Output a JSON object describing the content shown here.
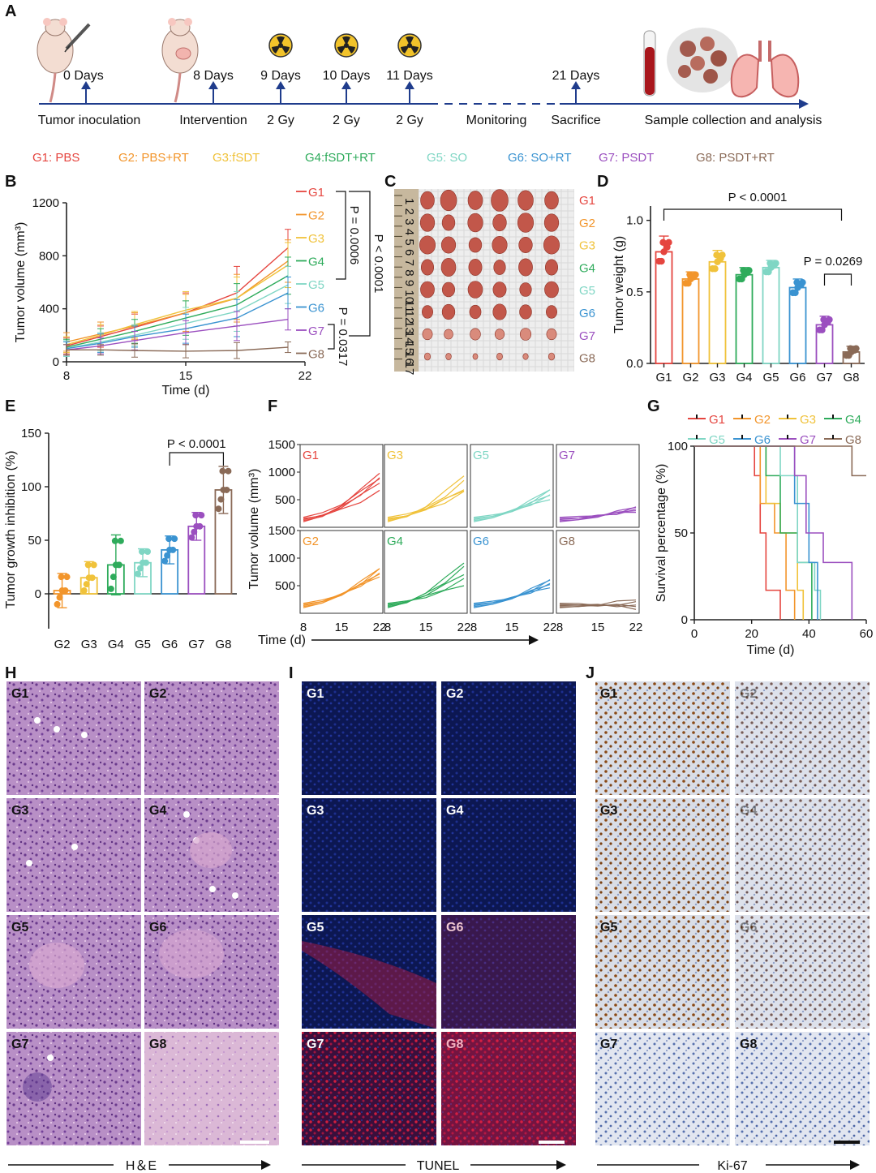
{
  "panels": {
    "A": "A",
    "B": "B",
    "C": "C",
    "D": "D",
    "E": "E",
    "F": "F",
    "G": "G",
    "H": "H",
    "I": "I",
    "J": "J"
  },
  "colors": {
    "G1": "#e5453f",
    "G2": "#f2952b",
    "G3": "#f0c23a",
    "G4": "#2eab5b",
    "G5": "#7fd6c4",
    "G6": "#3a93d1",
    "G7": "#9b4fbf",
    "G8": "#8a6a57",
    "axis": "#1f3c8c"
  },
  "timeline": {
    "events": [
      {
        "day": "0 Days",
        "below": "Tumor inoculation"
      },
      {
        "day": "8 Days",
        "below": "Intervention"
      },
      {
        "day": "9 Days",
        "below": "2 Gy"
      },
      {
        "day": "10 Days",
        "below": "2 Gy"
      },
      {
        "day": "11 Days",
        "below": "2 Gy"
      },
      {
        "day": "",
        "below": "Monitoring"
      },
      {
        "day": "21 Days",
        "below": "Sacrifice"
      },
      {
        "day": "",
        "below": "Sample collection and analysis"
      }
    ],
    "icons": [
      "mouse-injection-icon",
      "mouse-tumor-icon",
      "radiation-icon",
      "blood-tube-icon",
      "tumor-tissue-icon",
      "lungs-icon"
    ]
  },
  "groups_legend": [
    "G1: PBS",
    "G2: PBS+RT",
    "G3:fSDT",
    "G4:fSDT+RT",
    "G5: SO",
    "G6: SO+RT",
    "G7: PSDT",
    "G8: PSDT+RT"
  ],
  "panelB": {
    "chart_data": {
      "type": "line",
      "xlabel": "Time (d)",
      "ylabel": "Tumor volume (mm³)",
      "xlim": [
        8,
        22
      ],
      "ylim": [
        0,
        1200
      ],
      "xticks": [
        8,
        15,
        22
      ],
      "yticks": [
        0,
        400,
        800,
        1200
      ],
      "x": [
        8,
        10,
        12,
        15,
        18,
        21
      ],
      "series": [
        {
          "name": "G1",
          "values": [
            120,
            190,
            260,
            370,
            520,
            860
          ],
          "err": [
            60,
            80,
            100,
            150,
            200,
            140
          ]
        },
        {
          "name": "G2",
          "values": [
            150,
            210,
            270,
            370,
            480,
            760
          ],
          "err": [
            70,
            90,
            100,
            140,
            180,
            160
          ]
        },
        {
          "name": "G3",
          "values": [
            130,
            200,
            280,
            390,
            480,
            730
          ],
          "err": [
            60,
            80,
            100,
            140,
            160,
            170
          ]
        },
        {
          "name": "G4",
          "values": [
            110,
            170,
            230,
            330,
            430,
            650
          ],
          "err": [
            60,
            80,
            90,
            130,
            160,
            140
          ]
        },
        {
          "name": "G5",
          "values": [
            100,
            150,
            200,
            290,
            380,
            580
          ],
          "err": [
            60,
            70,
            80,
            120,
            150,
            140
          ]
        },
        {
          "name": "G6",
          "values": [
            100,
            140,
            190,
            250,
            330,
            520
          ],
          "err": [
            50,
            70,
            80,
            110,
            140,
            120
          ]
        },
        {
          "name": "G7",
          "values": [
            90,
            120,
            160,
            220,
            270,
            320
          ],
          "err": [
            40,
            60,
            70,
            90,
            110,
            80
          ]
        },
        {
          "name": "G8",
          "values": [
            90,
            90,
            85,
            80,
            85,
            110
          ],
          "err": [
            40,
            40,
            50,
            50,
            60,
            40
          ]
        }
      ],
      "brackets": [
        {
          "label": "P = 0.0006",
          "from": "G1",
          "to": "G5"
        },
        {
          "label": "P < 0.0001",
          "from": "G1",
          "to": "G7"
        },
        {
          "label": "P = 0.0317",
          "from": "G7",
          "to": "G8"
        }
      ]
    }
  },
  "panelC": {
    "labels": [
      "G1",
      "G2",
      "G3",
      "G4",
      "G5",
      "G6",
      "G7",
      "G8"
    ],
    "ruler": [
      "1",
      "2",
      "3",
      "4",
      "5",
      "6",
      "7",
      "8",
      "9",
      "10",
      "11",
      "12",
      "13",
      "14",
      "15",
      "16",
      "17"
    ]
  },
  "panelD": {
    "chart_data": {
      "type": "bar",
      "categories": [
        "G1",
        "G2",
        "G3",
        "G4",
        "G5",
        "G6",
        "G7",
        "G8"
      ],
      "values": [
        0.78,
        0.59,
        0.71,
        0.62,
        0.67,
        0.53,
        0.27,
        0.08
      ],
      "err": [
        0.11,
        0.05,
        0.08,
        0.05,
        0.05,
        0.06,
        0.06,
        0.04
      ],
      "ylabel": "Tumor weight (g)",
      "ylim": [
        0,
        1.1
      ],
      "yticks": [
        "0.0",
        "0.5",
        "1.0"
      ],
      "annotations": [
        "P < 0.0001",
        "P = 0.0269"
      ]
    }
  },
  "panelE": {
    "chart_data": {
      "type": "bar",
      "categories": [
        "G2",
        "G3",
        "G4",
        "G5",
        "G6",
        "G7",
        "G8"
      ],
      "values": [
        3,
        15,
        27,
        29,
        41,
        63,
        97
      ],
      "err": [
        16,
        15,
        28,
        13,
        13,
        13,
        22
      ],
      "ylabel": "Tumor growth inhibition (%)",
      "ylim": [
        -25,
        150
      ],
      "yticks": [
        "0",
        "50",
        "100",
        "150"
      ],
      "annotations": [
        "P < 0.0001"
      ]
    }
  },
  "panelF": {
    "chart_data": {
      "type": "line",
      "ylabel": "Tumor volume (mm³)",
      "xlabel": "Time (d)",
      "xticks": [
        "8",
        "15",
        "22"
      ],
      "yticks": [
        "500",
        "1000",
        "1500"
      ],
      "subplots": [
        {
          "name": "G1",
          "end": [
            1000,
            870,
            820,
            640,
            900
          ]
        },
        {
          "name": "G3",
          "end": [
            950,
            820,
            700,
            620,
            680
          ]
        },
        {
          "name": "G5",
          "end": [
            700,
            650,
            600,
            560,
            520
          ]
        },
        {
          "name": "G7",
          "end": [
            380,
            340,
            320,
            300,
            290
          ]
        },
        {
          "name": "G2",
          "end": [
            830,
            780,
            730,
            700,
            680
          ]
        },
        {
          "name": "G4",
          "end": [
            930,
            820,
            720,
            600,
            520
          ]
        },
        {
          "name": "G6",
          "end": [
            620,
            580,
            540,
            510,
            480
          ]
        },
        {
          "name": "G8",
          "end": [
            260,
            180,
            140,
            120,
            90
          ]
        }
      ]
    }
  },
  "panelG": {
    "chart_data": {
      "type": "line",
      "xlabel": "Time (d)",
      "ylabel": "Survival percentage (%)",
      "xlim": [
        0,
        60
      ],
      "ylim": [
        0,
        100
      ],
      "xticks": [
        "0",
        "20",
        "40",
        "60"
      ],
      "yticks": [
        "0",
        "50",
        "100"
      ],
      "series": [
        {
          "name": "G1",
          "steps": [
            [
              0,
              100
            ],
            [
              21,
              100
            ],
            [
              21,
              83
            ],
            [
              23,
              83
            ],
            [
              23,
              50
            ],
            [
              25,
              50
            ],
            [
              25,
              17
            ],
            [
              30,
              17
            ],
            [
              30,
              0
            ]
          ]
        },
        {
          "name": "G2",
          "steps": [
            [
              0,
              100
            ],
            [
              23,
              100
            ],
            [
              23,
              67
            ],
            [
              28,
              67
            ],
            [
              28,
              50
            ],
            [
              32,
              50
            ],
            [
              32,
              17
            ],
            [
              35,
              17
            ],
            [
              35,
              0
            ]
          ]
        },
        {
          "name": "G3",
          "steps": [
            [
              0,
              100
            ],
            [
              25,
              100
            ],
            [
              25,
              67
            ],
            [
              30,
              67
            ],
            [
              30,
              50
            ],
            [
              36,
              50
            ],
            [
              36,
              17
            ],
            [
              38,
              17
            ],
            [
              38,
              0
            ]
          ]
        },
        {
          "name": "G4",
          "steps": [
            [
              0,
              100
            ],
            [
              25,
              100
            ],
            [
              25,
              83
            ],
            [
              30,
              83
            ],
            [
              30,
              50
            ],
            [
              36,
              50
            ],
            [
              36,
              33
            ],
            [
              41,
              33
            ],
            [
              41,
              0
            ]
          ]
        },
        {
          "name": "G5",
          "steps": [
            [
              0,
              100
            ],
            [
              30,
              100
            ],
            [
              30,
              83
            ],
            [
              36,
              83
            ],
            [
              36,
              33
            ],
            [
              42,
              33
            ],
            [
              42,
              17
            ],
            [
              44,
              17
            ],
            [
              44,
              0
            ]
          ]
        },
        {
          "name": "G6",
          "steps": [
            [
              0,
              100
            ],
            [
              35,
              100
            ],
            [
              35,
              67
            ],
            [
              40,
              67
            ],
            [
              40,
              33
            ],
            [
              43,
              33
            ],
            [
              43,
              0
            ]
          ]
        },
        {
          "name": "G7",
          "steps": [
            [
              0,
              100
            ],
            [
              35,
              100
            ],
            [
              35,
              83
            ],
            [
              39,
              83
            ],
            [
              39,
              50
            ],
            [
              45,
              50
            ],
            [
              45,
              33
            ],
            [
              55,
              33
            ],
            [
              55,
              0
            ]
          ]
        },
        {
          "name": "G8",
          "steps": [
            [
              0,
              100
            ],
            [
              55,
              100
            ],
            [
              55,
              83
            ],
            [
              60,
              83
            ]
          ]
        }
      ]
    }
  },
  "micro": {
    "he_label": "H＆E",
    "tunel_label": "TUNEL",
    "ki67_label": "Ki-67",
    "tiles": [
      "G1",
      "G2",
      "G3",
      "G4",
      "G5",
      "G6",
      "G7",
      "G8"
    ]
  }
}
